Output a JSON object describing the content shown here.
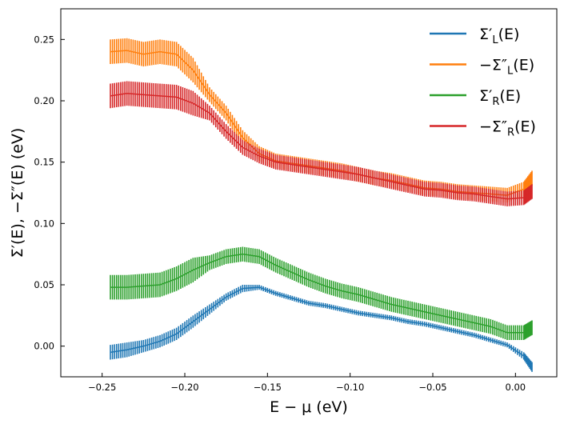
{
  "chart_data": {
    "type": "line",
    "title": "",
    "xlabel": "E − μ (eV)",
    "ylabel": "Σ′(E),  −Σ″(E) (eV)",
    "xlim": [
      -0.275,
      0.025
    ],
    "ylim": [
      -0.025,
      0.275
    ],
    "xticks": [
      -0.25,
      -0.2,
      -0.15,
      -0.1,
      -0.05,
      0.0
    ],
    "xtick_labels": [
      "−0.25",
      "−0.20",
      "−0.15",
      "−0.10",
      "−0.05",
      "0.00"
    ],
    "yticks": [
      0.0,
      0.05,
      0.1,
      0.15,
      0.2,
      0.25
    ],
    "ytick_labels": [
      "0.00",
      "0.05",
      "0.10",
      "0.15",
      "0.20",
      "0.25"
    ],
    "grid": false,
    "legend_position": "top-right",
    "x": [
      -0.245,
      -0.235,
      -0.225,
      -0.215,
      -0.205,
      -0.195,
      -0.185,
      -0.175,
      -0.165,
      -0.155,
      -0.145,
      -0.135,
      -0.125,
      -0.115,
      -0.105,
      -0.095,
      -0.085,
      -0.075,
      -0.065,
      -0.055,
      -0.045,
      -0.035,
      -0.025,
      -0.015,
      -0.005,
      0.005,
      0.01
    ],
    "series": [
      {
        "name": "Σ′_L(E)",
        "legend_main": "Σ′",
        "legend_sub": "L",
        "legend_tail": "(E)",
        "color": "#1f77b4",
        "values": [
          -0.005,
          -0.003,
          0.0,
          0.004,
          0.01,
          0.02,
          0.03,
          0.04,
          0.047,
          0.048,
          0.043,
          0.039,
          0.035,
          0.033,
          0.03,
          0.027,
          0.025,
          0.023,
          0.02,
          0.018,
          0.015,
          0.012,
          0.009,
          0.005,
          0.001,
          -0.008,
          -0.017
        ],
        "errors": [
          0.006,
          0.006,
          0.005,
          0.005,
          0.005,
          0.005,
          0.004,
          0.003,
          0.003,
          0.002,
          0.002,
          0.002,
          0.002,
          0.002,
          0.002,
          0.002,
          0.002,
          0.002,
          0.002,
          0.002,
          0.002,
          0.002,
          0.002,
          0.002,
          0.002,
          0.003,
          0.004
        ]
      },
      {
        "name": "−Σ″_L(E)",
        "legend_main": "−Σ″",
        "legend_sub": "L",
        "legend_tail": "(E)",
        "color": "#ff7f0e",
        "values": [
          0.24,
          0.241,
          0.238,
          0.24,
          0.238,
          0.225,
          0.205,
          0.19,
          0.17,
          0.157,
          0.151,
          0.149,
          0.147,
          0.145,
          0.143,
          0.14,
          0.137,
          0.135,
          0.132,
          0.129,
          0.128,
          0.126,
          0.125,
          0.124,
          0.123,
          0.128,
          0.137
        ]
      },
      {
        "name": "Σ′_R(E)",
        "legend_main": "Σ′",
        "legend_sub": "R",
        "legend_tail": "(E)",
        "color": "#2ca02c",
        "values": [
          0.048,
          0.048,
          0.049,
          0.05,
          0.055,
          0.062,
          0.068,
          0.073,
          0.075,
          0.073,
          0.066,
          0.06,
          0.054,
          0.049,
          0.045,
          0.042,
          0.038,
          0.034,
          0.031,
          0.028,
          0.025,
          0.022,
          0.019,
          0.016,
          0.011,
          0.011,
          0.015
        ]
      },
      {
        "name": "−Σ″_R(E)",
        "legend_main": "−Σ″",
        "legend_sub": "R",
        "legend_tail": "(E)",
        "color": "#d62728",
        "values": [
          0.204,
          0.206,
          0.205,
          0.204,
          0.203,
          0.198,
          0.19,
          0.175,
          0.162,
          0.155,
          0.15,
          0.148,
          0.146,
          0.144,
          0.142,
          0.14,
          0.137,
          0.134,
          0.131,
          0.128,
          0.127,
          0.125,
          0.124,
          0.122,
          0.12,
          0.121,
          0.126
        ]
      }
    ]
  }
}
